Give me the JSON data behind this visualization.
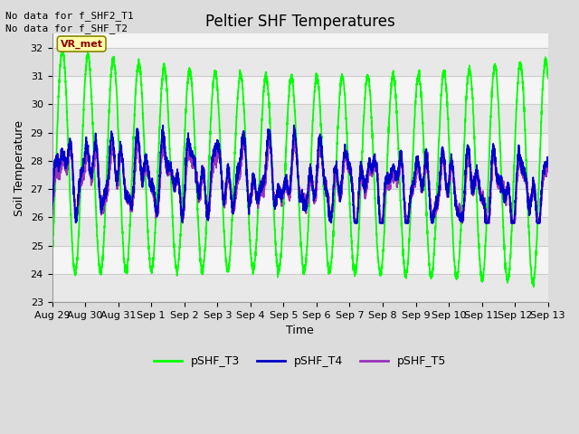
{
  "title": "Peltier SHF Temperatures",
  "xlabel": "Time",
  "ylabel": "Soil Temperature",
  "ylim": [
    23.0,
    32.5
  ],
  "yticks": [
    23.0,
    24.0,
    25.0,
    26.0,
    27.0,
    28.0,
    29.0,
    30.0,
    31.0,
    32.0
  ],
  "xtick_labels": [
    "Aug 29",
    "Aug 30",
    "Aug 31",
    "Sep 1",
    "Sep 2",
    "Sep 3",
    "Sep 4",
    "Sep 5",
    "Sep 6",
    "Sep 7",
    "Sep 8",
    "Sep 9",
    "Sep 10",
    "Sep 11",
    "Sep 12",
    "Sep 13"
  ],
  "no_data_text1": "No data for f_SHF2_T1",
  "no_data_text2": "No data for f_SHF_T2",
  "vr_met_label": "VR_met",
  "line_colors": {
    "T3": "#00FF00",
    "T4": "#0000CC",
    "T5": "#9933BB"
  },
  "line_widths": {
    "T3": 1.3,
    "T4": 1.3,
    "T5": 1.3
  },
  "legend_labels": [
    "pSHF_T3",
    "pSHF_T4",
    "pSHF_T5"
  ],
  "bg_color": "#DCDCDC",
  "plot_bg": "#F5F5F5",
  "grid_color": "#C8C8C8",
  "title_fontsize": 12,
  "label_fontsize": 9,
  "tick_fontsize": 8
}
